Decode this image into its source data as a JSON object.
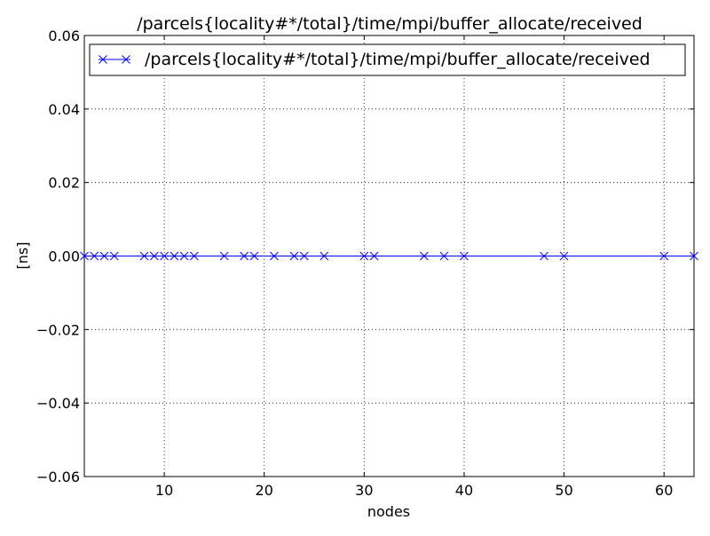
{
  "chart_data": {
    "type": "line",
    "title": "/parcels{locality#*/total}/time/mpi/buffer_allocate/received",
    "xlabel": "nodes",
    "ylabel": "[ns]",
    "xlim": [
      2,
      63
    ],
    "ylim": [
      -0.06,
      0.06
    ],
    "xticks": [
      10,
      20,
      30,
      40,
      50,
      60
    ],
    "xtick_labels": [
      "10",
      "20",
      "30",
      "40",
      "50",
      "60"
    ],
    "yticks": [
      -0.06,
      -0.04,
      -0.02,
      0.0,
      0.02,
      0.04,
      0.06
    ],
    "ytick_labels": [
      "−0.06",
      "−0.04",
      "−0.02",
      "0.00",
      "0.02",
      "0.04",
      "0.06"
    ],
    "grid": true,
    "legend_position": "top",
    "series": [
      {
        "name": "/parcels{locality#*/total}/time/mpi/buffer_allocate/received",
        "color": "#0000ff",
        "marker": "x",
        "x": [
          2,
          3,
          4,
          5,
          8,
          9,
          10,
          11,
          12,
          13,
          16,
          18,
          19,
          21,
          23,
          24,
          26,
          30,
          31,
          36,
          38,
          40,
          48,
          50,
          60,
          63
        ],
        "y": [
          0,
          0,
          0,
          0,
          0,
          0,
          0,
          0,
          0,
          0,
          0,
          0,
          0,
          0,
          0,
          0,
          0,
          0,
          0,
          0,
          0,
          0,
          0,
          0,
          0,
          0
        ]
      }
    ]
  }
}
